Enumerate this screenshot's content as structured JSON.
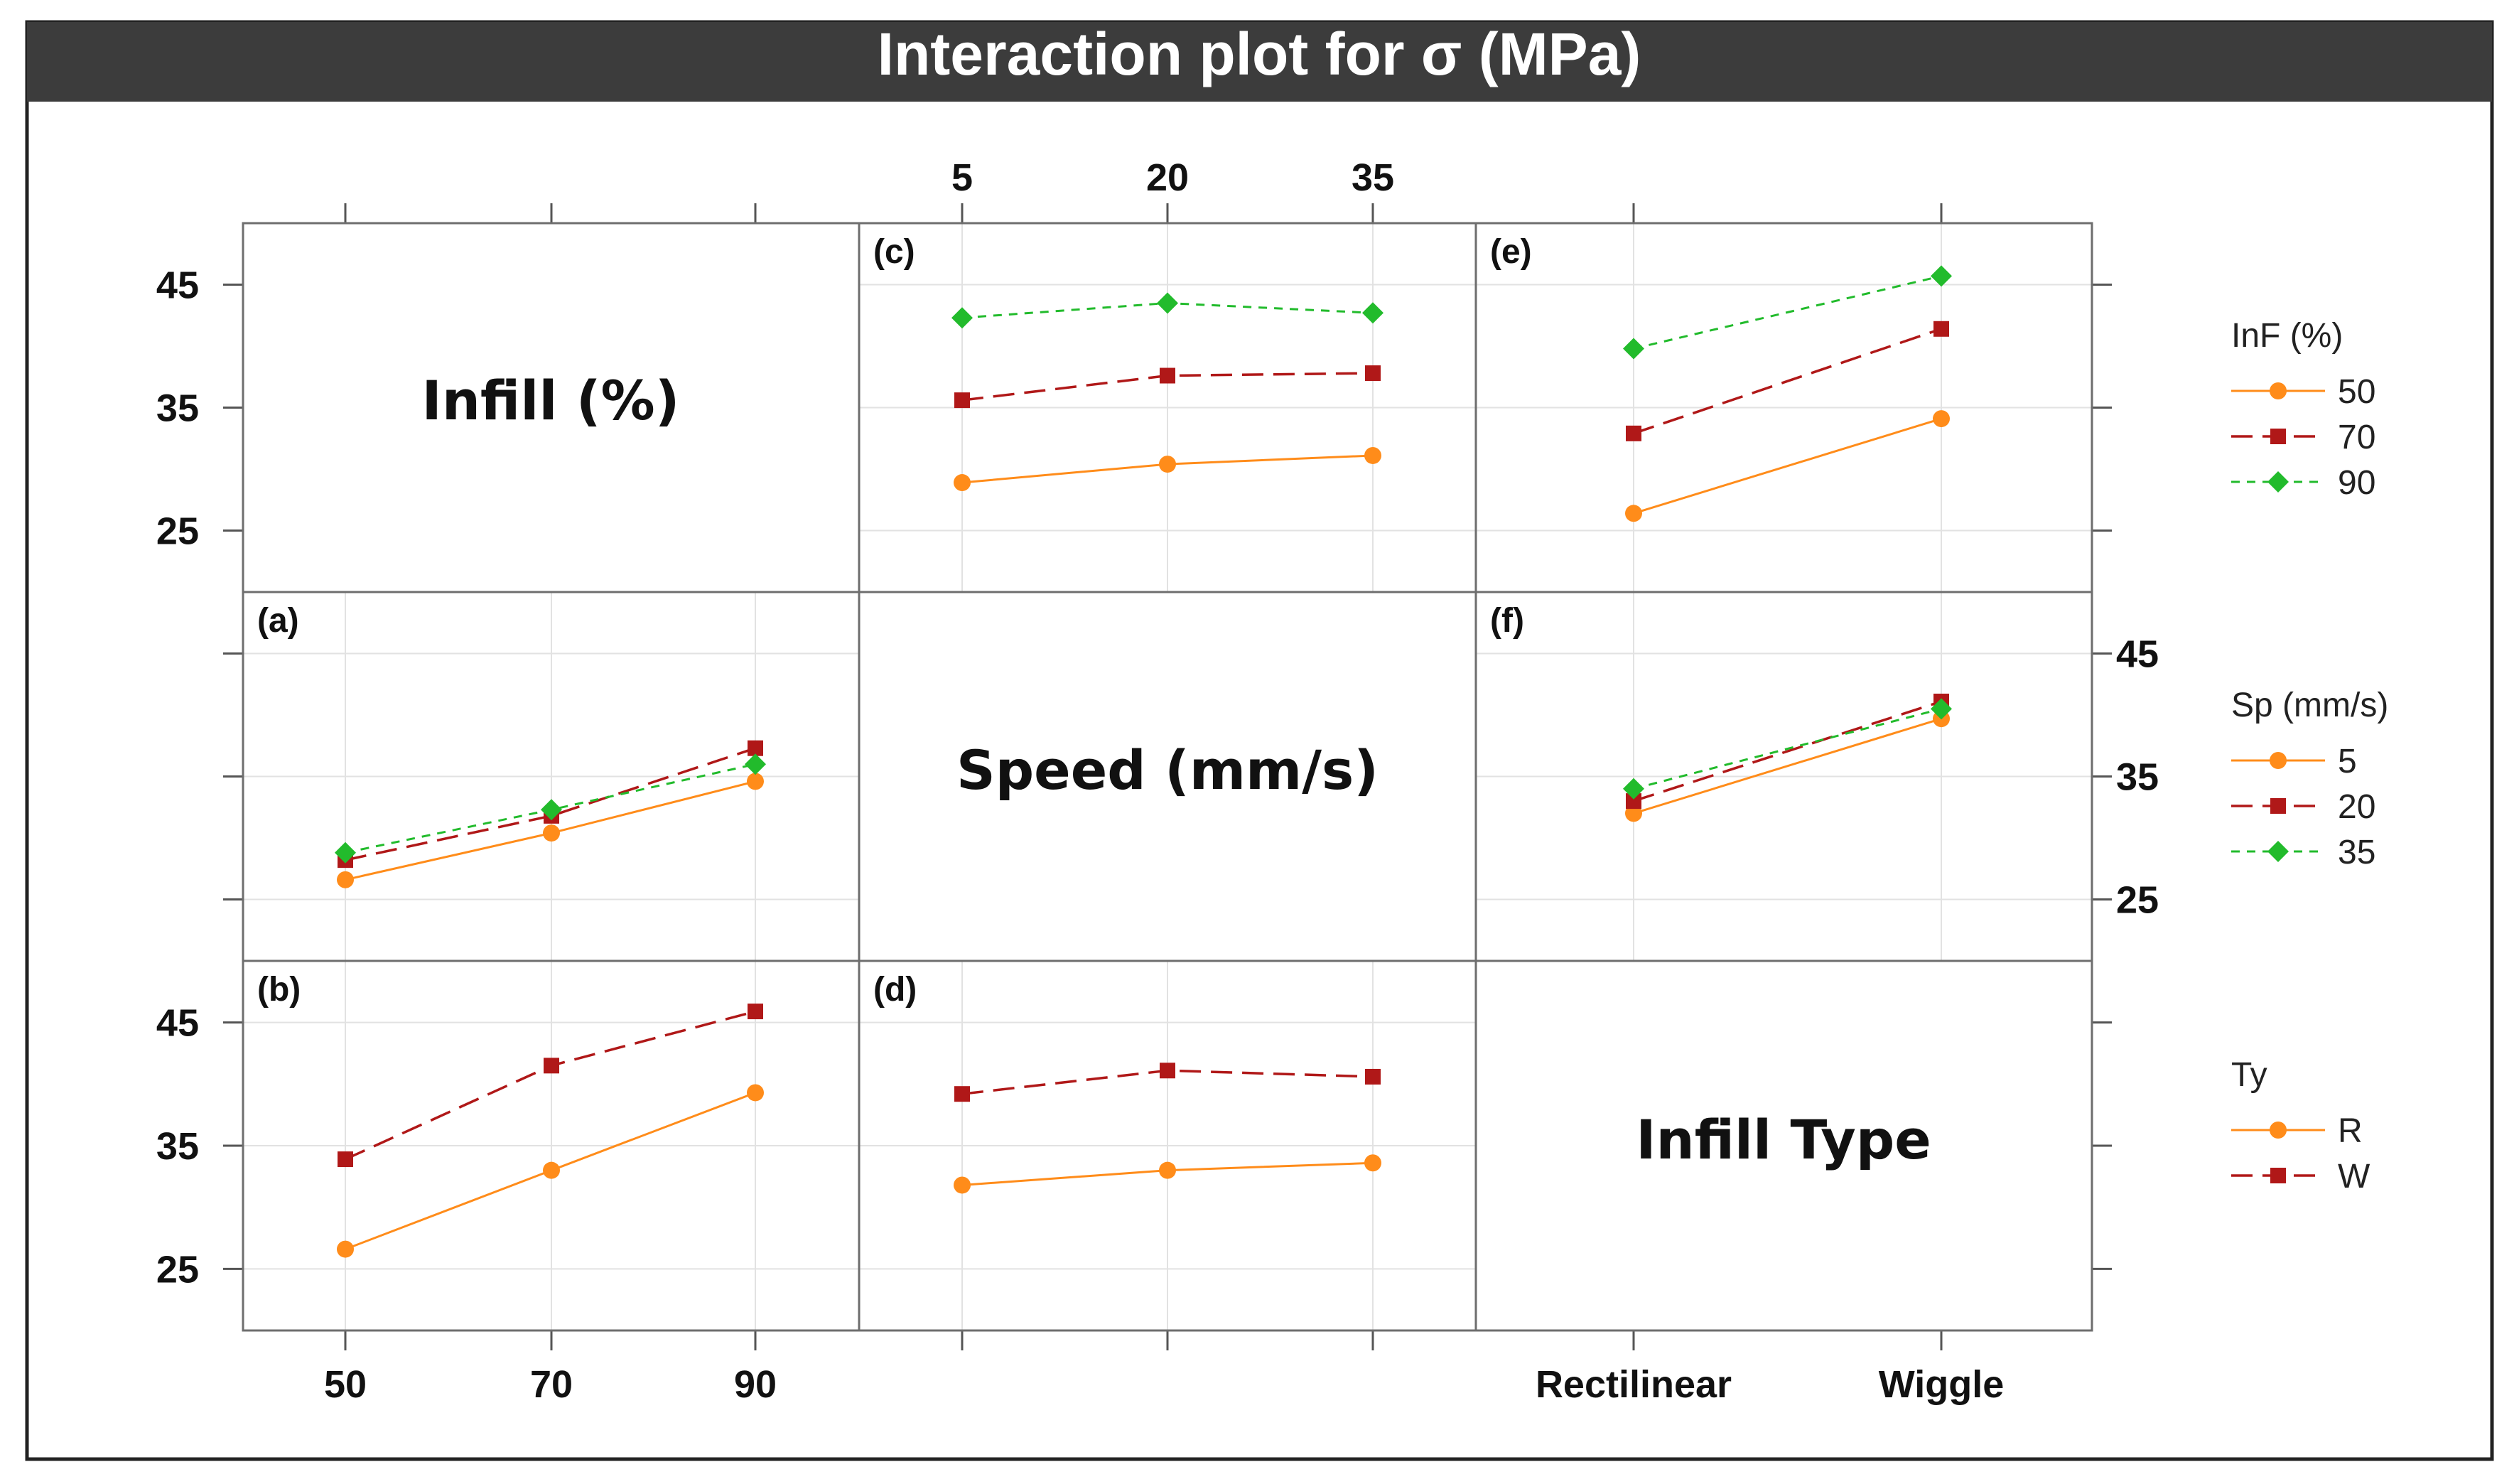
{
  "title": "Interaction plot for σ (MPa)",
  "colors": {
    "title_bar": "#3c3c3c",
    "frame": "#222222",
    "panel_border": "#6e6e6e",
    "grid": "#e2e2e2",
    "level1": "#ff8c1a",
    "level2": "#b01818",
    "level3": "#22bb2c"
  },
  "factors": [
    {
      "key": "infill",
      "name": "Infill (%)",
      "legend_title": "InF (%)",
      "levels": [
        "50",
        "70",
        "90"
      ]
    },
    {
      "key": "speed",
      "name": "Speed (mm/s)",
      "legend_title": "Sp (mm/s)",
      "levels": [
        "5",
        "20",
        "35"
      ]
    },
    {
      "key": "type",
      "name": "Infill Type",
      "legend_title": "Ty",
      "levels": [
        "R",
        "W"
      ]
    }
  ],
  "axis_ticks": {
    "infill": [
      "50",
      "70",
      "90"
    ],
    "speed": [
      "5",
      "20",
      "35"
    ],
    "type": [
      "Rectilinear",
      "Wiggle"
    ],
    "y": [
      "25",
      "35",
      "45"
    ]
  },
  "chart_data": {
    "type": "line",
    "title": "Interaction plot for σ (MPa)",
    "ylim": [
      20,
      50
    ],
    "y_ticks": [
      25,
      35,
      45
    ],
    "panels": [
      {
        "label": "(a)",
        "x_factor": "Infill (%)",
        "trace_factor": "Sp (mm/s)",
        "categories": [
          "50",
          "70",
          "90"
        ],
        "series": [
          {
            "name": "5",
            "values": [
              26.6,
              30.4,
              34.6
            ]
          },
          {
            "name": "20",
            "values": [
              28.2,
              31.8,
              37.3
            ]
          },
          {
            "name": "35",
            "values": [
              28.8,
              32.3,
              36.0
            ]
          }
        ]
      },
      {
        "label": "(b)",
        "x_factor": "Infill (%)",
        "trace_factor": "Ty",
        "categories": [
          "50",
          "70",
          "90"
        ],
        "series": [
          {
            "name": "R",
            "values": [
              26.6,
              33.0,
              39.3
            ]
          },
          {
            "name": "W",
            "values": [
              33.9,
              41.5,
              45.9
            ]
          }
        ]
      },
      {
        "label": "(c)",
        "x_factor": "Speed (mm/s)",
        "trace_factor": "InF (%)",
        "categories": [
          "5",
          "20",
          "35"
        ],
        "series": [
          {
            "name": "50",
            "values": [
              28.9,
              30.4,
              31.1
            ]
          },
          {
            "name": "70",
            "values": [
              35.6,
              37.6,
              37.8
            ]
          },
          {
            "name": "90",
            "values": [
              42.3,
              43.5,
              42.7
            ]
          }
        ]
      },
      {
        "label": "(d)",
        "x_factor": "Speed (mm/s)",
        "trace_factor": "Ty",
        "categories": [
          "5",
          "20",
          "35"
        ],
        "series": [
          {
            "name": "R",
            "values": [
              31.8,
              33.0,
              33.6
            ]
          },
          {
            "name": "W",
            "values": [
              39.2,
              41.1,
              40.6
            ]
          }
        ]
      },
      {
        "label": "(e)",
        "x_factor": "Infill Type",
        "trace_factor": "InF (%)",
        "categories": [
          "Rectilinear",
          "Wiggle"
        ],
        "series": [
          {
            "name": "50",
            "values": [
              26.4,
              34.1
            ]
          },
          {
            "name": "70",
            "values": [
              32.9,
              41.4
            ]
          },
          {
            "name": "90",
            "values": [
              39.8,
              45.7
            ]
          }
        ]
      },
      {
        "label": "(f)",
        "x_factor": "Infill Type",
        "trace_factor": "Sp (mm/s)",
        "categories": [
          "Rectilinear",
          "Wiggle"
        ],
        "series": [
          {
            "name": "5",
            "values": [
              32.0,
              39.7
            ]
          },
          {
            "name": "20",
            "values": [
              33.0,
              41.1
            ]
          },
          {
            "name": "35",
            "values": [
              34.0,
              40.5
            ]
          }
        ]
      }
    ]
  }
}
